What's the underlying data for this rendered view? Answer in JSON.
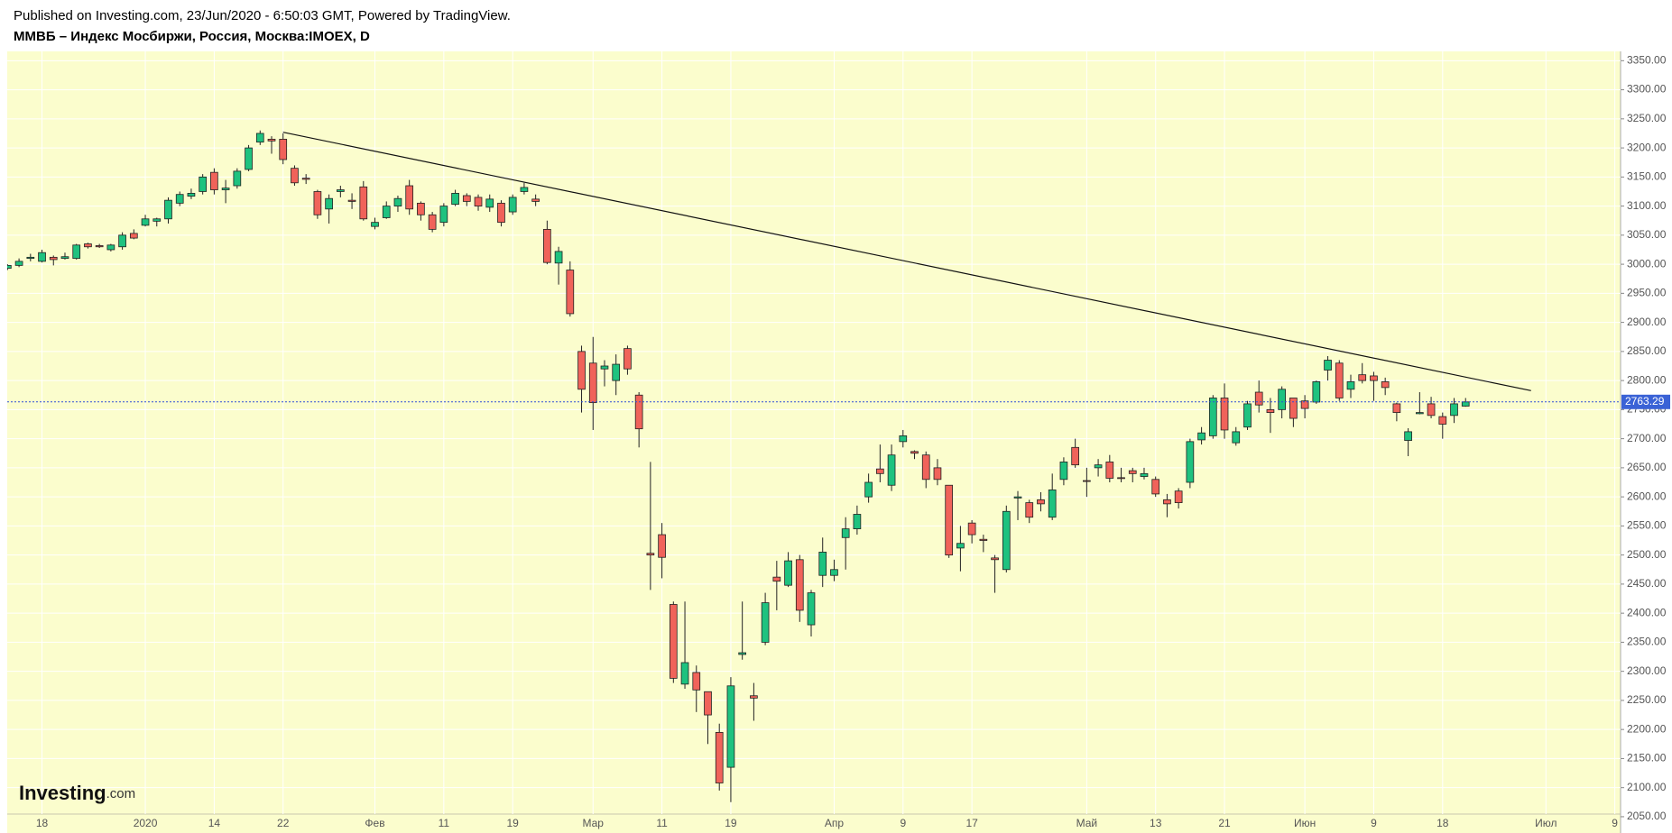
{
  "chart_data": {
    "type": "candlestick",
    "subtitle": "Published on Investing.com, 23/Jun/2020 - 6:50:03 GMT, Powered by TradingView.",
    "title": "ММВБ – Индекс Мосбиржи, Россия, Москва:IMOEX, D",
    "logo": [
      "Investing",
      ".com"
    ],
    "categories": [
      null,
      null,
      null,
      "18",
      null,
      null,
      null,
      null,
      null,
      null,
      null,
      null,
      "2020",
      null,
      null,
      null,
      null,
      null,
      "14",
      null,
      null,
      null,
      null,
      null,
      "22",
      null,
      null,
      null,
      null,
      null,
      null,
      null,
      "Фев",
      null,
      null,
      null,
      null,
      null,
      "11",
      null,
      null,
      null,
      null,
      null,
      "19",
      null,
      null,
      null,
      null,
      null,
      null,
      "Мар",
      null,
      null,
      null,
      null,
      null,
      "11",
      null,
      null,
      null,
      null,
      null,
      "19",
      null,
      null,
      null,
      null,
      null,
      null,
      null,
      null,
      "Апр",
      null,
      null,
      null,
      null,
      null,
      "9",
      null,
      null,
      null,
      null,
      null,
      "17",
      null,
      null,
      null,
      null,
      null,
      null,
      null,
      null,
      null,
      "Май",
      null,
      null,
      null,
      null,
      null,
      "13",
      null,
      null,
      null,
      null,
      null,
      "21",
      null,
      null,
      null,
      null,
      null,
      null,
      "Июн",
      null,
      null,
      null,
      null,
      null,
      "9",
      null,
      null,
      null,
      null,
      null,
      "18",
      null,
      null,
      null,
      null,
      null,
      null,
      null,
      null,
      "Июл",
      null,
      null,
      null,
      null,
      null,
      "9"
    ],
    "open": [
      2993,
      2998,
      3010,
      3005,
      3012,
      3010,
      3010,
      3035,
      3032,
      3025,
      3030,
      3053,
      3067,
      3074,
      3078,
      3105,
      3117,
      3125,
      3158,
      3128,
      3135,
      3163,
      3210,
      3215,
      3215,
      3165,
      3148,
      3125,
      3095,
      3125,
      3110,
      3133,
      3065,
      3080,
      3100,
      3135,
      3105,
      3085,
      3072,
      3103,
      3118,
      3115,
      3098,
      3105,
      3090,
      3125,
      3112,
      3060,
      3002,
      2990,
      2850,
      2830,
      2820,
      2800,
      2855,
      2775,
      2503,
      2535,
      2415,
      2278,
      2298,
      2265,
      2195,
      2135,
      2329,
      2258,
      2350,
      2462,
      2448,
      2492,
      2380,
      2465,
      2465,
      2530,
      2545,
      2600,
      2648,
      2620,
      2695,
      2678,
      2672,
      2650,
      2620,
      2512,
      2555,
      2527,
      2495,
      2475,
      2598,
      2590,
      2595,
      2565,
      2630,
      2685,
      2628,
      2650,
      2660,
      2633,
      2645,
      2635,
      2630,
      2595,
      2610,
      2625,
      2698,
      2705,
      2770,
      2693,
      2720,
      2780,
      2750,
      2750,
      2770,
      2765,
      2763,
      2818,
      2830,
      2785,
      2810,
      2808,
      2798,
      2760,
      2697,
      2743,
      2760,
      2738,
      2740,
      2756,
      null,
      null,
      null,
      null,
      null,
      null,
      null,
      null,
      null,
      null,
      null,
      null,
      null
    ],
    "high": [
      3000,
      3010,
      3018,
      3025,
      3015,
      3020,
      3035,
      3037,
      3035,
      3035,
      3055,
      3060,
      3085,
      3080,
      3115,
      3125,
      3130,
      3155,
      3165,
      3145,
      3165,
      3205,
      3230,
      3220,
      3225,
      3170,
      3155,
      3128,
      3120,
      3135,
      3122,
      3143,
      3080,
      3108,
      3118,
      3145,
      3108,
      3090,
      3105,
      3128,
      3122,
      3120,
      3120,
      3110,
      3120,
      3140,
      3120,
      3075,
      3030,
      3005,
      2860,
      2875,
      2835,
      2845,
      2860,
      2780,
      2660,
      2555,
      2420,
      2420,
      2310,
      2265,
      2210,
      2290,
      2420,
      2280,
      2435,
      2490,
      2505,
      2500,
      2440,
      2530,
      2492,
      2565,
      2585,
      2640,
      2690,
      2690,
      2715,
      2680,
      2678,
      2665,
      2620,
      2550,
      2560,
      2535,
      2500,
      2585,
      2610,
      2595,
      2608,
      2640,
      2668,
      2700,
      2650,
      2665,
      2672,
      2650,
      2650,
      2650,
      2635,
      2605,
      2615,
      2700,
      2720,
      2775,
      2795,
      2720,
      2765,
      2800,
      2770,
      2790,
      2770,
      2775,
      2800,
      2842,
      2835,
      2810,
      2830,
      2815,
      2805,
      2762,
      2718,
      2780,
      2772,
      2745,
      2770,
      2770,
      null,
      null,
      null,
      null,
      null,
      null,
      null,
      null,
      null,
      null,
      null,
      null,
      null
    ],
    "low": [
      2990,
      2995,
      3005,
      3003,
      2998,
      3008,
      3008,
      3027,
      3028,
      3022,
      3025,
      3043,
      3065,
      3065,
      3070,
      3100,
      3112,
      3120,
      3120,
      3105,
      3130,
      3160,
      3205,
      3190,
      3172,
      3135,
      3138,
      3078,
      3070,
      3115,
      3095,
      3075,
      3060,
      3078,
      3090,
      3085,
      3075,
      3055,
      3065,
      3100,
      3100,
      3092,
      3090,
      3065,
      3085,
      3120,
      3100,
      3000,
      2965,
      2910,
      2745,
      2715,
      2790,
      2775,
      2810,
      2685,
      2440,
      2460,
      2280,
      2270,
      2230,
      2175,
      2095,
      2075,
      2320,
      2215,
      2345,
      2405,
      2445,
      2385,
      2360,
      2445,
      2455,
      2475,
      2535,
      2590,
      2625,
      2610,
      2685,
      2665,
      2615,
      2620,
      2495,
      2472,
      2520,
      2505,
      2435,
      2470,
      2560,
      2555,
      2575,
      2560,
      2620,
      2650,
      2600,
      2635,
      2625,
      2625,
      2625,
      2630,
      2600,
      2565,
      2580,
      2615,
      2690,
      2700,
      2700,
      2688,
      2715,
      2745,
      2710,
      2735,
      2720,
      2735,
      2760,
      2800,
      2765,
      2770,
      2795,
      2765,
      2775,
      2730,
      2670,
      2742,
      2735,
      2700,
      2727,
      2755,
      null,
      null,
      null,
      null,
      null,
      null,
      null,
      null,
      null,
      null,
      null,
      null,
      null
    ],
    "close": [
      2998,
      3005,
      3012,
      3020,
      3008,
      3013,
      3033,
      3030,
      3030,
      3033,
      3050,
      3045,
      3078,
      3078,
      3110,
      3120,
      3122,
      3150,
      3128,
      3131,
      3160,
      3200,
      3225,
      3212,
      3180,
      3140,
      3146,
      3085,
      3113,
      3128,
      3108,
      3078,
      3072,
      3100,
      3113,
      3095,
      3085,
      3060,
      3100,
      3122,
      3108,
      3100,
      3112,
      3072,
      3115,
      3132,
      3108,
      3003,
      3022,
      2915,
      2785,
      2762,
      2825,
      2828,
      2820,
      2717,
      2500,
      2496,
      2288,
      2315,
      2268,
      2225,
      2108,
      2275,
      2332,
      2254,
      2418,
      2455,
      2490,
      2405,
      2435,
      2505,
      2475,
      2545,
      2570,
      2625,
      2640,
      2672,
      2705,
      2675,
      2630,
      2630,
      2500,
      2520,
      2535,
      2525,
      2492,
      2575,
      2600,
      2565,
      2588,
      2612,
      2660,
      2655,
      2627,
      2655,
      2632,
      2632,
      2640,
      2640,
      2605,
      2588,
      2590,
      2695,
      2710,
      2770,
      2715,
      2712,
      2760,
      2758,
      2745,
      2785,
      2735,
      2752,
      2798,
      2835,
      2770,
      2798,
      2800,
      2800,
      2788,
      2745,
      2712,
      2745,
      2740,
      2725,
      2760,
      2763.29,
      null,
      null,
      null,
      null,
      null,
      null,
      null,
      null,
      null,
      null,
      null,
      null,
      null
    ],
    "up_color": "#1ec27f",
    "down_color": "#f0635a",
    "last_price": 2763.29,
    "trendline": {
      "x": [
        24,
        132.7
      ],
      "y": [
        3227,
        2782.6
      ]
    },
    "ylim": [
      2022,
      3366
    ],
    "yticks": [
      {
        "value": 2050,
        "label": "2050.00"
      },
      {
        "value": 2100,
        "label": "2100.00"
      },
      {
        "value": 2150,
        "label": "2150.00"
      },
      {
        "value": 2200,
        "label": "2200.00"
      },
      {
        "value": 2250,
        "label": "2250.00"
      },
      {
        "value": 2300,
        "label": "2300.00"
      },
      {
        "value": 2350,
        "label": "2350.00"
      },
      {
        "value": 2400,
        "label": "2400.00"
      },
      {
        "value": 2450,
        "label": "2450.00"
      },
      {
        "value": 2500,
        "label": "2500.00"
      },
      {
        "value": 2550,
        "label": "2550.00"
      },
      {
        "value": 2600,
        "label": "2600.00"
      },
      {
        "value": 2650,
        "label": "2650.00"
      },
      {
        "value": 2700,
        "label": "2700.00"
      },
      {
        "value": 2750,
        "label": "2750.00"
      },
      {
        "value": 2800,
        "label": "2800.00"
      },
      {
        "value": 2850,
        "label": "2850.00"
      },
      {
        "value": 2900,
        "label": "2900.00"
      },
      {
        "value": 2950,
        "label": "2950.00"
      },
      {
        "value": 3000,
        "label": "3000.00"
      },
      {
        "value": 3050,
        "label": "3050.00"
      },
      {
        "value": 3100,
        "label": "3100.00"
      },
      {
        "value": 3150,
        "label": "3150.00"
      },
      {
        "value": 3200,
        "label": "3200.00"
      },
      {
        "value": 3250,
        "label": "3250.00"
      },
      {
        "value": 3300,
        "label": "3300.00"
      },
      {
        "value": 3350,
        "label": "3350.00"
      }
    ],
    "grid": true
  }
}
